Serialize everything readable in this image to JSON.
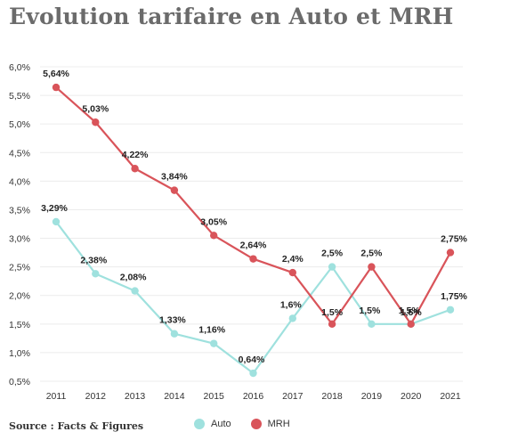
{
  "header": {
    "title": "Evolution tarifaire en Auto et MRH"
  },
  "footer": {
    "source": "Source : Facts & Figures"
  },
  "chart_data": {
    "type": "line",
    "title": "Evolution tarifaire en Auto et MRH",
    "xlabel": "",
    "ylabel": "",
    "x": [
      "2011",
      "2012",
      "2013",
      "2014",
      "2015",
      "2016",
      "2017",
      "2018",
      "2019",
      "2020",
      "2021"
    ],
    "ylim": [
      0.5,
      6.0
    ],
    "yticks": [
      "0,5%",
      "1,0%",
      "1,5%",
      "2,0%",
      "2,5%",
      "3,0%",
      "3,5%",
      "4,0%",
      "4,5%",
      "5,0%",
      "5,5%",
      "6,0%"
    ],
    "grid": true,
    "legend": "bottom",
    "series": [
      {
        "name": "Auto",
        "color": "#9fe1de",
        "values": [
          3.29,
          2.38,
          2.08,
          1.33,
          1.16,
          0.64,
          1.6,
          2.5,
          1.5,
          1.5,
          1.75
        ],
        "labels": [
          "3,29%",
          "2,38%",
          "2,08%",
          "1,33%",
          "1,16%",
          "0,64%",
          "1,6%",
          "2,5%",
          "1,5%",
          "1,5%",
          "1,75%"
        ]
      },
      {
        "name": "MRH",
        "color": "#d9545a",
        "values": [
          5.64,
          5.03,
          4.22,
          3.84,
          3.05,
          2.64,
          2.4,
          1.5,
          2.5,
          1.5,
          2.75
        ],
        "labels": [
          "5,64%",
          "5,03%",
          "4,22%",
          "3,84%",
          "3,05%",
          "2,64%",
          "2,4%",
          "1,5%",
          "2,5%",
          "1,5%",
          "2,75%"
        ]
      }
    ]
  }
}
